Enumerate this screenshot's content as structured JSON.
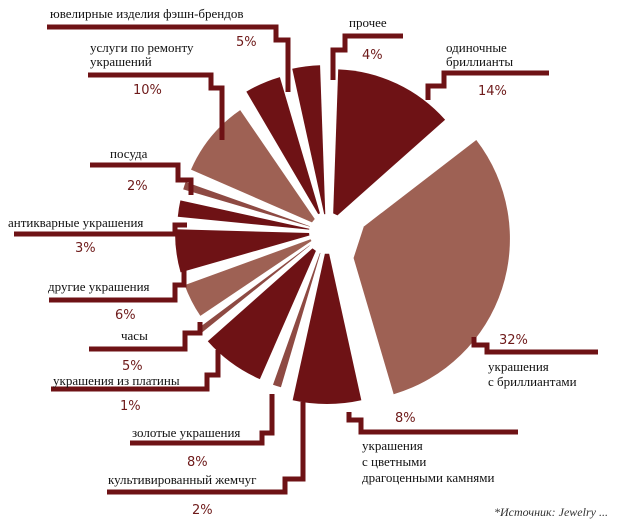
{
  "chart_data": {
    "type": "pie",
    "title": "",
    "colors": {
      "dark": "#6e1215",
      "light": "#9e6154",
      "medium": "#8e4a43",
      "leader": "#6e1215",
      "percent_text": "#6e1a1a"
    },
    "slices": [
      {
        "label": "одиночные бриллианты",
        "value": 14,
        "pct_label": "14%",
        "color": "dark"
      },
      {
        "label": "украшения с бриллиантами",
        "value": 32,
        "pct_label": "32%",
        "color": "light"
      },
      {
        "label": "украшения с цветными драгоценными камнями",
        "value": 8,
        "pct_label": "8%",
        "color": "dark"
      },
      {
        "label": "культивированный жемчуг",
        "value": 2,
        "pct_label": "2%",
        "color": "medium"
      },
      {
        "label": "золотые украшения",
        "value": 8,
        "pct_label": "8%",
        "color": "dark"
      },
      {
        "label": "украшения из платины",
        "value": 1,
        "pct_label": "1%",
        "color": "medium"
      },
      {
        "label": "часы",
        "value": 5,
        "pct_label": "5%",
        "color": "light"
      },
      {
        "label": "другие украшения",
        "value": 6,
        "pct_label": "6%",
        "color": "dark"
      },
      {
        "label": "антикварные украшения",
        "value": 3,
        "pct_label": "3%",
        "color": "dark"
      },
      {
        "label": "посуда",
        "value": 2,
        "pct_label": "2%",
        "color": "medium"
      },
      {
        "label": "услуги по ремонту украшений",
        "value": 10,
        "pct_label": "10%",
        "color": "light"
      },
      {
        "label": "ювелирные изделия фэшн-брендов",
        "value": 5,
        "pct_label": "5%",
        "color": "dark"
      },
      {
        "label": "прочее",
        "value": 4,
        "pct_label": "4%",
        "color": "dark"
      }
    ],
    "legend": "none (direct labels with leader lines)"
  },
  "labels": {
    "single_diamonds": [
      "одиночные",
      "бриллианты"
    ],
    "diamond_jewelry": [
      "украшения",
      "с бриллиантами"
    ],
    "colored_gems": [
      "украшения",
      "с цветными",
      "драгоценными камнями"
    ],
    "pearls": "культивированный жемчуг",
    "gold": "золотые украшения",
    "platinum": "украшения из платины",
    "watches": "часы",
    "other_jewelry": "другие украшения",
    "antique": "антикварные украшения",
    "tableware": "посуда",
    "repair": [
      "услуги по ремонту",
      "украшений"
    ],
    "fashion": "ювелирные изделия фэшн-брендов",
    "other": "прочее"
  },
  "percents": {
    "single_diamonds": "14%",
    "diamond_jewelry": "32%",
    "colored_gems": "8%",
    "pearls": "2%",
    "gold": "8%",
    "platinum": "1%",
    "watches": "5%",
    "other_jewelry": "6%",
    "antique": "3%",
    "tableware": "2%",
    "repair": "10%",
    "fashion": "5%",
    "other": "4%"
  },
  "footnote": "*Источник: Jewelry ..."
}
